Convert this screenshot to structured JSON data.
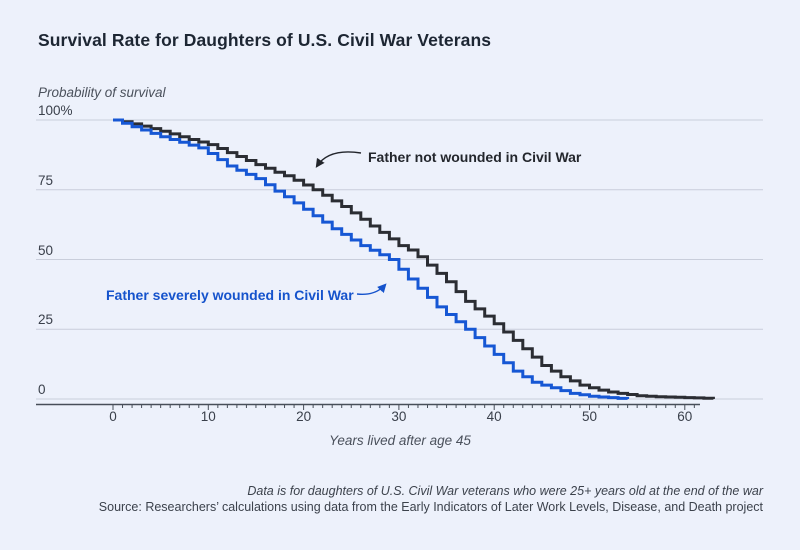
{
  "page": {
    "title": "Survival Rate for Daughters of U.S. Civil War Veterans",
    "background_color": "#edf1fb"
  },
  "chart_data": {
    "type": "line",
    "subtype": "step-survival-curve",
    "title": "Survival Rate for Daughters of U.S. Civil War Veterans",
    "y_axis_title": "Probability of survival",
    "x_axis_title": "Years lived after age 45",
    "y_tick_labels": [
      "100%",
      "75",
      "50",
      "25",
      "0"
    ],
    "y_tick_values": [
      100,
      75,
      50,
      25,
      0
    ],
    "x_tick_values": [
      0,
      10,
      20,
      30,
      40,
      50,
      60
    ],
    "x_minor_tick_step": 1,
    "xlim": [
      0,
      63
    ],
    "ylim": [
      0,
      100
    ],
    "grid": "horizontal",
    "legend_position": "inline-annotations",
    "colors": {
      "not_wounded": "#2b2d33",
      "wounded": "#1657d4",
      "gridline": "#c9cedb",
      "axis": "#484e59"
    },
    "series": [
      {
        "name": "Father not wounded in Civil War",
        "color": "#2b2d33",
        "x_start": 0,
        "x_step": 1,
        "values": [
          100,
          99.4,
          98.6,
          97.8,
          96.9,
          96,
          95,
          94,
          93,
          92.1,
          91.2,
          89.8,
          88.3,
          86.9,
          85.5,
          84,
          82.7,
          81.3,
          80,
          78.4,
          76.7,
          75,
          73,
          71,
          69,
          66.7,
          64.4,
          62,
          59.7,
          57.4,
          55,
          53.4,
          51,
          48,
          45,
          42,
          38.5,
          35,
          32.3,
          29.7,
          27,
          24,
          21,
          18,
          15,
          12,
          10,
          8,
          6.5,
          5,
          4,
          3.2,
          2.5,
          2,
          1.6,
          1.2,
          1,
          0.8,
          0.7,
          0.6,
          0.5,
          0.4,
          0.3,
          0
        ]
      },
      {
        "name": "Father severely wounded in Civil War",
        "color": "#1657d4",
        "x_start": 0,
        "x_step": 1,
        "values": [
          100,
          98.8,
          97.6,
          96.4,
          95.2,
          94,
          93,
          92,
          91,
          90,
          88,
          85.8,
          83.5,
          82,
          80.5,
          79,
          76.8,
          74.5,
          72.5,
          70.3,
          68,
          65.7,
          63.4,
          61,
          59,
          57,
          55,
          53.3,
          51.7,
          50,
          46.5,
          43,
          39.7,
          36.4,
          33,
          30.3,
          27.7,
          25,
          22,
          19,
          16,
          13,
          10,
          8,
          6,
          5,
          4,
          3,
          2,
          1.5,
          1,
          0.7,
          0.5,
          0.2,
          0
        ]
      }
    ],
    "annotations": [
      {
        "text": "Father not wounded in Civil War",
        "target_series": 0
      },
      {
        "text": "Father severely wounded in Civil War",
        "target_series": 1
      }
    ],
    "footnote": "Data is for daughters of U.S. Civil War veterans who were 25+ years old at the end of the war",
    "source": "Source: Researchers’ calculations using data from the Early Indicators of Later Work Levels, Disease, and Death project"
  }
}
